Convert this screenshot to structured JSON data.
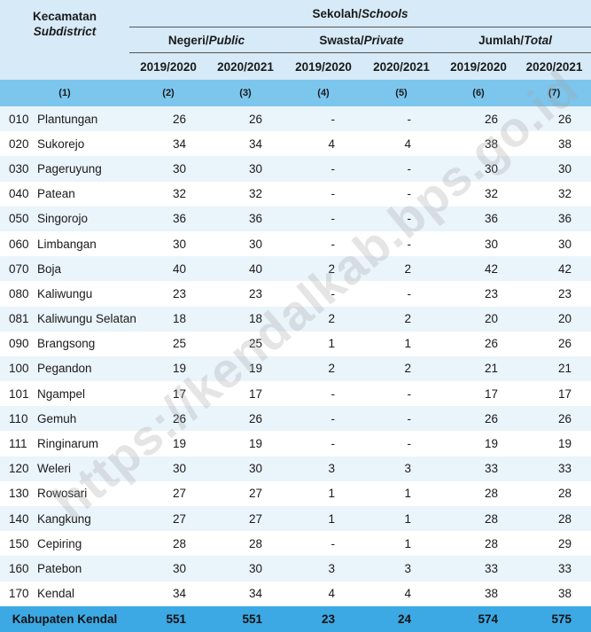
{
  "header": {
    "subdistrict_id": "Kecamatan",
    "subdistrict_en": "Subdistrict",
    "schools_id": "Sekolah/",
    "schools_en": "Schools",
    "public_id": "Negeri/",
    "public_en": "Public",
    "private_id": "Swasta/",
    "private_en": "Private",
    "total_id": "Jumlah/",
    "total_en": "Total",
    "years": [
      "2019/2020",
      "2020/2021",
      "2019/2020",
      "2020/2021",
      "2019/2020",
      "2020/2021"
    ],
    "col_index": [
      "(1)",
      "(2)",
      "(3)",
      "(4)",
      "(5)",
      "(6)",
      "(7)"
    ]
  },
  "rows": [
    {
      "code": "010",
      "name": "Plantungan",
      "v": [
        "26",
        "26",
        "-",
        "-",
        "26",
        "26"
      ]
    },
    {
      "code": "020",
      "name": "Sukorejo",
      "v": [
        "34",
        "34",
        "4",
        "4",
        "38",
        "38"
      ]
    },
    {
      "code": "030",
      "name": "Pageruyung",
      "v": [
        "30",
        "30",
        "-",
        "-",
        "30",
        "30"
      ]
    },
    {
      "code": "040",
      "name": "Patean",
      "v": [
        "32",
        "32",
        "-",
        "-",
        "32",
        "32"
      ]
    },
    {
      "code": "050",
      "name": "Singorojo",
      "v": [
        "36",
        "36",
        "-",
        "-",
        "36",
        "36"
      ]
    },
    {
      "code": "060",
      "name": "Limbangan",
      "v": [
        "30",
        "30",
        "-",
        "-",
        "30",
        "30"
      ]
    },
    {
      "code": "070",
      "name": "Boja",
      "v": [
        "40",
        "40",
        "2",
        "2",
        "42",
        "42"
      ]
    },
    {
      "code": "080",
      "name": "Kaliwungu",
      "v": [
        "23",
        "23",
        "-",
        "-",
        "23",
        "23"
      ]
    },
    {
      "code": "081",
      "name": "Kaliwungu Selatan",
      "v": [
        "18",
        "18",
        "2",
        "2",
        "20",
        "20"
      ]
    },
    {
      "code": "090",
      "name": "Brangsong",
      "v": [
        "25",
        "25",
        "1",
        "1",
        "26",
        "26"
      ]
    },
    {
      "code": "100",
      "name": "Pegandon",
      "v": [
        "19",
        "19",
        "2",
        "2",
        "21",
        "21"
      ]
    },
    {
      "code": "101",
      "name": "Ngampel",
      "v": [
        "17",
        "17",
        "-",
        "-",
        "17",
        "17"
      ]
    },
    {
      "code": "110",
      "name": "Gemuh",
      "v": [
        "26",
        "26",
        "-",
        "-",
        "26",
        "26"
      ]
    },
    {
      "code": "111",
      "name": "Ringinarum",
      "v": [
        "19",
        "19",
        "-",
        "-",
        "19",
        "19"
      ]
    },
    {
      "code": "120",
      "name": "Weleri",
      "v": [
        "30",
        "30",
        "3",
        "3",
        "33",
        "33"
      ]
    },
    {
      "code": "130",
      "name": "Rowosari",
      "v": [
        "27",
        "27",
        "1",
        "1",
        "28",
        "28"
      ]
    },
    {
      "code": "140",
      "name": "Kangkung",
      "v": [
        "27",
        "27",
        "1",
        "1",
        "28",
        "28"
      ]
    },
    {
      "code": "150",
      "name": "Cepiring",
      "v": [
        "28",
        "28",
        "-",
        "1",
        "28",
        "29"
      ]
    },
    {
      "code": "160",
      "name": "Patebon",
      "v": [
        "30",
        "30",
        "3",
        "3",
        "33",
        "33"
      ]
    },
    {
      "code": "170",
      "name": "Kendal",
      "v": [
        "34",
        "34",
        "4",
        "4",
        "38",
        "38"
      ]
    }
  ],
  "total": {
    "label": "Kabupaten Kendal",
    "v": [
      "551",
      "551",
      "23",
      "24",
      "574",
      "575"
    ]
  },
  "watermark": "https://kendalkab.bps.go.id",
  "colors": {
    "header_bg": "#d6eaf7",
    "index_bg": "#7cc6ee",
    "stripe": "#eaf4fb",
    "total_bg": "#3ca9e4"
  }
}
